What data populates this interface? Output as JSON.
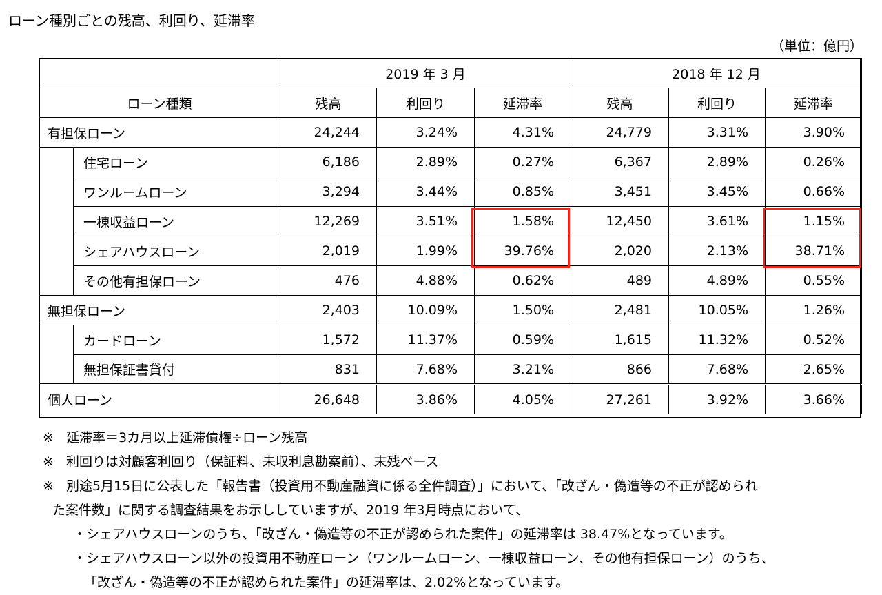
{
  "title": "ローン種別ごとの残高、利回り、延滞率",
  "unit": "（単位：億円）",
  "table": {
    "header_loan_type": "ローン種類",
    "period_2019": "2019 年 3 月",
    "period_2018": "2018 年 12 月",
    "col_balance": "残高",
    "col_yield": "利回り",
    "col_delinquency": "延滞率",
    "secured": {
      "label": "有担保ローン",
      "v": [
        "24,244",
        "3.24%",
        "4.31%",
        "24,779",
        "3.31%",
        "3.90%"
      ]
    },
    "secured_items": [
      {
        "label": "住宅ローン",
        "v": [
          "6,186",
          "2.89%",
          "0.27%",
          "6,367",
          "2.89%",
          "0.26%"
        ]
      },
      {
        "label": "ワンルームローン",
        "v": [
          "3,294",
          "3.44%",
          "0.85%",
          "3,451",
          "3.45%",
          "0.66%"
        ]
      },
      {
        "label": "一棟収益ローン",
        "v": [
          "12,269",
          "3.51%",
          "1.58%",
          "12,450",
          "3.61%",
          "1.15%"
        ]
      },
      {
        "label": "シェアハウスローン",
        "v": [
          "2,019",
          "1.99%",
          "39.76%",
          "2,020",
          "2.13%",
          "38.71%"
        ]
      },
      {
        "label": "その他有担保ローン",
        "v": [
          "476",
          "4.88%",
          "0.62%",
          "489",
          "4.89%",
          "0.55%"
        ]
      }
    ],
    "unsecured": {
      "label": "無担保ローン",
      "v": [
        "2,403",
        "10.09%",
        "1.50%",
        "2,481",
        "10.05%",
        "1.26%"
      ]
    },
    "unsecured_items": [
      {
        "label": "カードローン",
        "v": [
          "1,572",
          "11.37%",
          "0.59%",
          "1,615",
          "11.32%",
          "0.52%"
        ]
      },
      {
        "label": "無担保証書貸付",
        "v": [
          "831",
          "7.68%",
          "3.21%",
          "866",
          "7.68%",
          "2.65%"
        ]
      }
    ],
    "total": {
      "label": "個人ローン",
      "v": [
        "26,648",
        "3.86%",
        "4.05%",
        "27,261",
        "3.92%",
        "3.66%"
      ]
    }
  },
  "notes": {
    "mark": "※",
    "note1": "延滞率＝3カ月以上延滞債権÷ローン残高",
    "note2": "利回りは対顧客利回り（保証料、未収利息勘案前）、末残ベース",
    "note3_line1": "別途5月15日に公表した「報告書（投資用不動産融資に係る全件調査）」において、「改ざん・偽造等の不正が認められ",
    "note3_line2": "た案件数」に関する調査結果をお示ししていますが、2019 年3月時点において、",
    "bullet1": "・シェアハウスローンのうち、「改ざん・偽造等の不正が認められた案件」の延滞率は 38.47%となっています。",
    "bullet2_line1": "・シェアハウスローン以外の投資用不動産ローン（ワンルームローン、一棟収益ローン、その他有担保ローン）のうち、",
    "bullet2_line2": "「改ざん・偽造等の不正が認められた案件」の延滞率は、2.02%となっています。"
  },
  "colors": {
    "highlight": "#e8281e"
  }
}
